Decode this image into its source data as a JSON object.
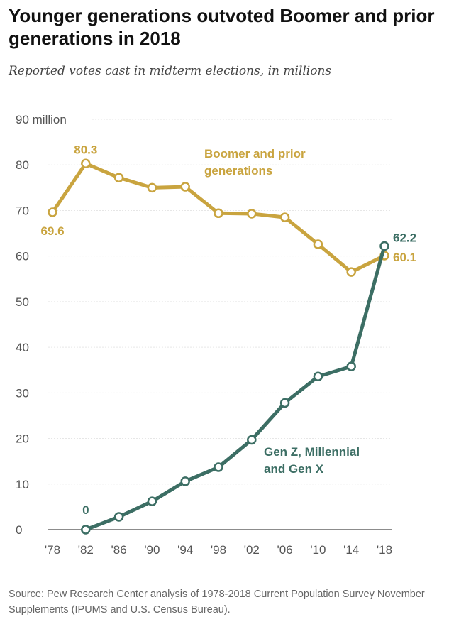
{
  "chart_data": {
    "type": "line",
    "title": "Younger generations outvoted Boomer and prior generations in 2018",
    "subtitle": "Reported votes cast in midterm elections, in millions",
    "x": [
      "'78",
      "'82",
      "'86",
      "'90",
      "'94",
      "'98",
      "'02",
      "'06",
      "'10",
      "'14",
      "'18"
    ],
    "ylim": [
      0,
      90
    ],
    "yticks": [
      0,
      10,
      20,
      30,
      40,
      50,
      60,
      70,
      80,
      90
    ],
    "ytick_labels": [
      "0",
      "10",
      "20",
      "30",
      "40",
      "50",
      "60",
      "70",
      "80",
      "90 million"
    ],
    "grid": true,
    "series": [
      {
        "name": "Boomer and prior generations",
        "label_lines": [
          "Boomer and prior",
          "generations"
        ],
        "color": "#c9a43f",
        "values": [
          69.6,
          80.3,
          77.2,
          75.0,
          75.2,
          69.4,
          69.3,
          68.5,
          62.6,
          56.5,
          60.1
        ],
        "data_labels": {
          "0": "69.6",
          "1": "80.3",
          "10": "60.1"
        }
      },
      {
        "name": "Gen Z, Millennial and Gen X",
        "label_lines": [
          "Gen Z, Millennial",
          "and Gen X"
        ],
        "color": "#3c6e64",
        "values": [
          null,
          0,
          2.8,
          6.2,
          10.6,
          13.7,
          19.7,
          27.8,
          33.6,
          35.8,
          62.2
        ],
        "data_labels": {
          "1": "0",
          "10": "62.2"
        }
      }
    ],
    "source": "Source: Pew Research Center analysis of 1978-2018 Current Population Survey November Supplements (IPUMS and U.S. Census Bureau)."
  }
}
